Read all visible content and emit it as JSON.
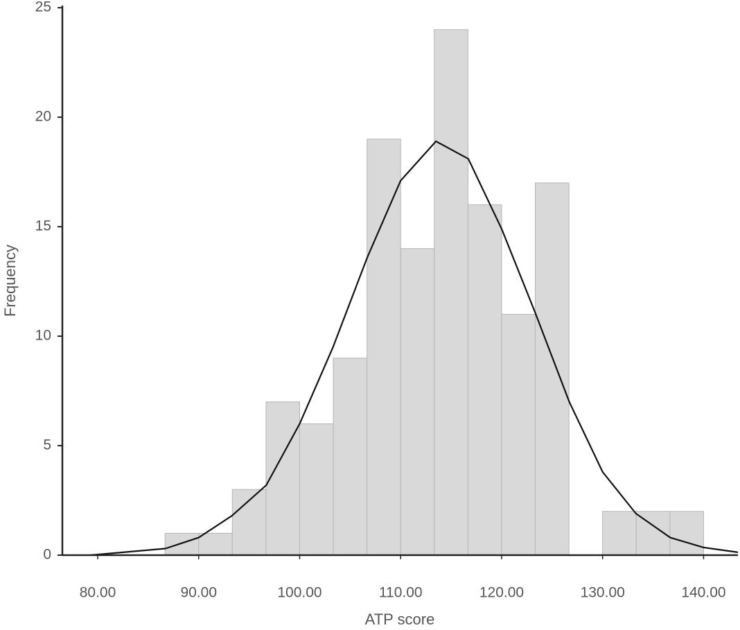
{
  "chart_data": {
    "type": "histogram",
    "x_label": "ATP score",
    "y_label": "Frequency",
    "bins": [
      86.67,
      90,
      93.33,
      96.67,
      100,
      103.33,
      106.67,
      110,
      113.33,
      116.67,
      120,
      123.33,
      126.67,
      130,
      133.33,
      136.67,
      140
    ],
    "values": [
      1,
      1,
      3,
      7,
      6,
      9,
      19,
      14,
      24,
      16,
      11,
      17,
      0,
      2,
      2,
      2
    ],
    "color": "#d9d9d9",
    "curve": {
      "color": "#111111",
      "x": [
        79.3,
        86.7,
        90,
        93.3,
        96.7,
        100,
        103.3,
        106.7,
        110,
        113.5,
        116.7,
        120,
        123.3,
        126.7,
        130,
        133.3,
        136.7,
        140,
        143.4
      ],
      "values": [
        0,
        0.3,
        0.8,
        1.8,
        3.2,
        6,
        9.5,
        13.6,
        17.1,
        18.9,
        18.1,
        14.9,
        11.1,
        7,
        3.8,
        1.9,
        0.8,
        0.35,
        0.13
      ]
    },
    "xlim": [
      76.5,
      143.4
    ],
    "xticks": [
      {
        "value": 80,
        "label": "80.00"
      },
      {
        "value": 90,
        "label": "90.00"
      },
      {
        "value": 100,
        "label": "100.00"
      },
      {
        "value": 110,
        "label": "110.00"
      },
      {
        "value": 120,
        "label": "120.00"
      },
      {
        "value": 130,
        "label": "130.00"
      },
      {
        "value": 140,
        "label": "140.00"
      }
    ],
    "ylim": [
      0,
      25.1
    ],
    "yticks": [
      0,
      5,
      10,
      15,
      20,
      25
    ]
  }
}
